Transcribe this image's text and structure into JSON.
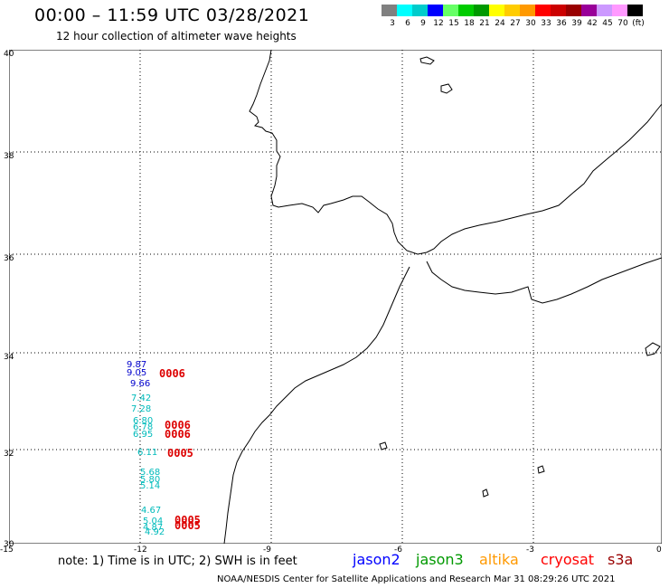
{
  "title": "00:00 – 11:59 UTC 03/28/2021",
  "subtitle": "12 hour collection of altimeter wave heights",
  "color_scale": {
    "colors": [
      "#808080",
      "#00ffff",
      "#00cccc",
      "#0000ff",
      "#66ff66",
      "#00cc00",
      "#009900",
      "#ffff00",
      "#ffcc00",
      "#ff9900",
      "#ff0000",
      "#cc0000",
      "#990000",
      "#990099",
      "#cc99ff",
      "#ff99ff",
      "#000000"
    ],
    "labels": [
      "3",
      "6",
      "9",
      "12",
      "15",
      "18",
      "21",
      "24",
      "27",
      "30",
      "33",
      "36",
      "39",
      "42",
      "45",
      "70",
      "(ft)"
    ]
  },
  "axes": {
    "lat_labels": [
      "40",
      "38",
      "36",
      "34",
      "32",
      "30"
    ],
    "lon_labels": [
      "-15",
      "-12",
      "-9",
      "-6",
      "-3",
      "0"
    ]
  },
  "observations": [
    {
      "text": "9.87",
      "color": "#0000cc"
    },
    {
      "text": "9.05",
      "color": "#0000cc"
    },
    {
      "text": "9.66",
      "color": "#0000cc"
    },
    {
      "text": "7.42",
      "color": "#00bbbb"
    },
    {
      "text": "7.28",
      "color": "#00bbbb"
    },
    {
      "text": "6.80",
      "color": "#00bbbb"
    },
    {
      "text": "6.78",
      "color": "#00bbbb"
    },
    {
      "text": "6.95",
      "color": "#00bbbb"
    },
    {
      "text": "6.11",
      "color": "#00bbbb"
    },
    {
      "text": "5.68",
      "color": "#00bbbb"
    },
    {
      "text": "5.80",
      "color": "#00bbbb"
    },
    {
      "text": "5.14",
      "color": "#00bbbb"
    },
    {
      "text": "4.67",
      "color": "#00bbbb"
    },
    {
      "text": "5.04",
      "color": "#00bbbb"
    },
    {
      "text": "4.87",
      "color": "#00bbbb"
    },
    {
      "text": "4.92",
      "color": "#00bbbb"
    }
  ],
  "time_tags": [
    "0006",
    "0006",
    "0006",
    "0005",
    "0005",
    "0005"
  ],
  "note": "note: 1) Time is in UTC; 2) SWH is in feet",
  "legend": [
    {
      "label": "jason2",
      "color": "#0000ff"
    },
    {
      "label": "jason3",
      "color": "#009900"
    },
    {
      "label": "altika",
      "color": "#ff9900"
    },
    {
      "label": "cryosat",
      "color": "#ff0000"
    },
    {
      "label": "s3a",
      "color": "#990000"
    }
  ],
  "credit": "NOAA/NESDIS Center for Satellite Applications and Research   Mar 31 08:29:26 UTC 2021"
}
